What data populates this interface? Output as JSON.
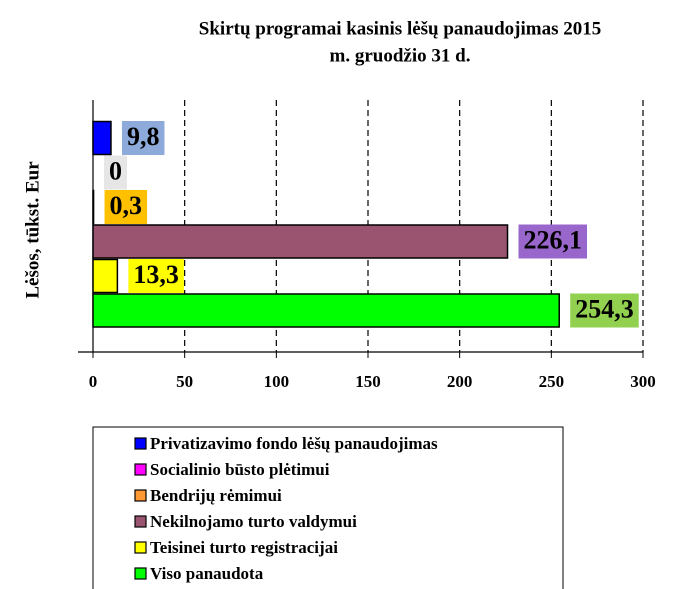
{
  "chart_data": {
    "type": "bar",
    "orientation": "horizontal",
    "title": [
      "Skirtų programai kasinis lėšų panaudojimas 2015",
      "m. gruodžio 31 d."
    ],
    "y_label": "Lėšos, tūkst. Eur",
    "xlim": [
      0,
      300
    ],
    "xticks": [
      0,
      50,
      100,
      150,
      200,
      250,
      300
    ],
    "grid": true,
    "grid_style": "dashed",
    "legend": "bottom",
    "series": [
      {
        "name": "Privatizavimo fondo lėšų panaudojimas",
        "color": "#0000ff",
        "label_background": "#8eaadb",
        "values": [
          9.8
        ],
        "value_labels": [
          "9,8"
        ]
      },
      {
        "name": "Socialinio būsto plėtimui",
        "color": "#ff00ff",
        "label_background": "#e6e6e6",
        "values": [
          0
        ],
        "value_labels": [
          "0"
        ]
      },
      {
        "name": "Bendrijų rėmimui",
        "color": "#ff9933",
        "label_background": "#ffc000",
        "values": [
          0.3
        ],
        "value_labels": [
          "0,3"
        ]
      },
      {
        "name": "Nekilnojamo turto valdymui",
        "color": "#9b5470",
        "label_background": "#9966cc",
        "values": [
          226.1
        ],
        "value_labels": [
          "226,1"
        ]
      },
      {
        "name": "Teisinei turto registracijai",
        "color": "#ffff00",
        "label_background": "#ffff00",
        "values": [
          13.3
        ],
        "value_labels": [
          "13,3"
        ]
      },
      {
        "name": "Viso panaudota",
        "color": "#00ff00",
        "label_background": "#92d050",
        "values": [
          254.3
        ],
        "value_labels": [
          "254,3"
        ]
      }
    ]
  }
}
